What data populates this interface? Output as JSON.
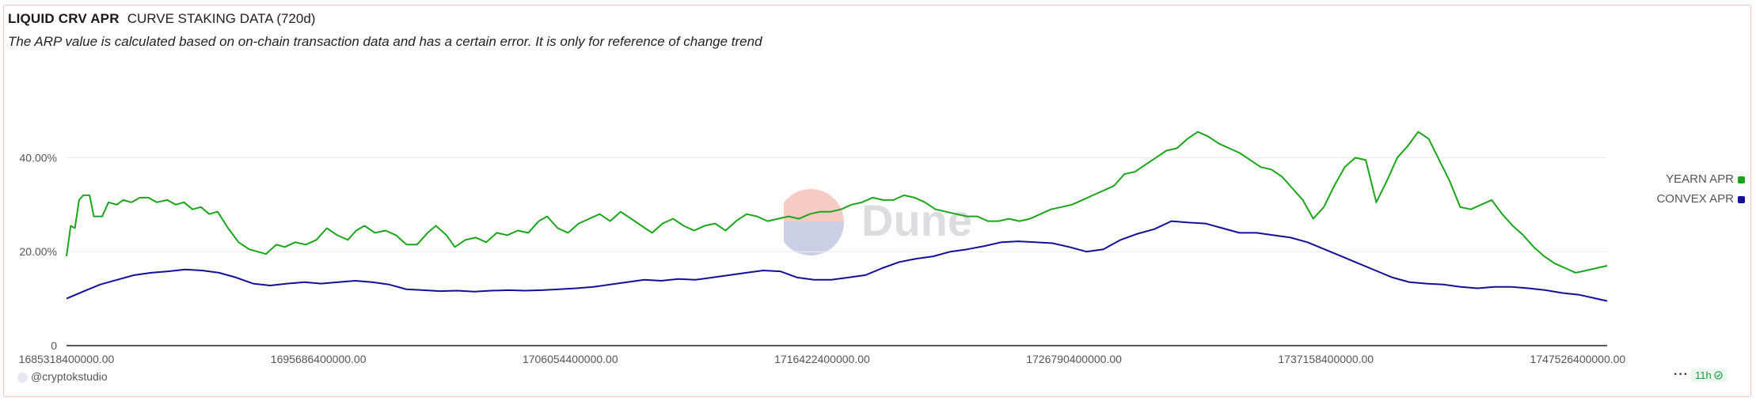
{
  "header": {
    "title": "LIQUID CRV APR",
    "subtitle_tag": "CURVE STAKING DATA (720d)",
    "note": "The ARP value is calculated based on on-chain transaction data and has a certain error. It is only for reference of change trend"
  },
  "watermark": {
    "text": "Dune"
  },
  "footer": {
    "author": "@cryptokstudio",
    "menu": "···",
    "age": "11h",
    "check_icon": "check-circle-icon"
  },
  "colors": {
    "yearn": "#1aa51a",
    "convex": "#10109a",
    "grid": "#ececec",
    "axis": "#222222"
  },
  "chart_data": {
    "type": "line",
    "title": "LIQUID CRV APR",
    "xlabel": "",
    "ylabel": "",
    "xlim": [
      1685318400000,
      1748736000000
    ],
    "ylim": [
      0,
      0.5
    ],
    "x_ticks": [
      1685318400000,
      1695686400000,
      1706054400000,
      1716422400000,
      1726790400000,
      1737158400000,
      1747526400000
    ],
    "x_tick_labels": [
      "1685318400000.00",
      "1695686400000.00",
      "1706054400000.00",
      "1716422400000.00",
      "1726790400000.00",
      "1737158400000.00",
      "1747526400000.00"
    ],
    "y_ticks": [
      0,
      0.2,
      0.4
    ],
    "y_tick_labels": [
      "0",
      "20.00%",
      "40.00%"
    ],
    "grid": true,
    "legend_position": "right",
    "series": [
      {
        "name": "YEARN APR",
        "color": "#1aa51a",
        "points": [
          [
            1685318400000,
            0.19
          ],
          [
            1685491200000,
            0.255
          ],
          [
            1685664000000,
            0.25
          ],
          [
            1685836800000,
            0.31
          ],
          [
            1686009600000,
            0.32
          ],
          [
            1686268800000,
            0.32
          ],
          [
            1686441600000,
            0.275
          ],
          [
            1686787200000,
            0.275
          ],
          [
            1687046400000,
            0.305
          ],
          [
            1687392000000,
            0.3
          ],
          [
            1687651200000,
            0.31
          ],
          [
            1687996800000,
            0.305
          ],
          [
            1688342400000,
            0.315
          ],
          [
            1688688000000,
            0.315
          ],
          [
            1689033600000,
            0.305
          ],
          [
            1689465600000,
            0.31
          ],
          [
            1689811200000,
            0.3
          ],
          [
            1690156800000,
            0.305
          ],
          [
            1690502400000,
            0.29
          ],
          [
            1690848000000,
            0.295
          ],
          [
            1691193600000,
            0.28
          ],
          [
            1691539200000,
            0.285
          ],
          [
            1691971200000,
            0.25
          ],
          [
            1692403200000,
            0.22
          ],
          [
            1692835200000,
            0.205
          ],
          [
            1693180800000,
            0.2
          ],
          [
            1693526400000,
            0.195
          ],
          [
            1693958400000,
            0.215
          ],
          [
            1694304000000,
            0.21
          ],
          [
            1694736000000,
            0.22
          ],
          [
            1695168000000,
            0.215
          ],
          [
            1695600000000,
            0.225
          ],
          [
            1696032000000,
            0.25
          ],
          [
            1696464000000,
            0.235
          ],
          [
            1696896000000,
            0.225
          ],
          [
            1697241600000,
            0.245
          ],
          [
            1697587200000,
            0.255
          ],
          [
            1698019200000,
            0.24
          ],
          [
            1698451200000,
            0.245
          ],
          [
            1698883200000,
            0.235
          ],
          [
            1699315200000,
            0.215
          ],
          [
            1699747200000,
            0.215
          ],
          [
            1700179200000,
            0.24
          ],
          [
            1700524800000,
            0.255
          ],
          [
            1700956800000,
            0.235
          ],
          [
            1701302400000,
            0.21
          ],
          [
            1701734400000,
            0.225
          ],
          [
            1702166400000,
            0.23
          ],
          [
            1702598400000,
            0.22
          ],
          [
            1703030400000,
            0.24
          ],
          [
            1703462400000,
            0.235
          ],
          [
            1703894400000,
            0.245
          ],
          [
            1704326400000,
            0.24
          ],
          [
            1704758400000,
            0.265
          ],
          [
            1705104000000,
            0.275
          ],
          [
            1705536000000,
            0.25
          ],
          [
            1705968000000,
            0.24
          ],
          [
            1706400000000,
            0.26
          ],
          [
            1706832000000,
            0.27
          ],
          [
            1707264000000,
            0.28
          ],
          [
            1707696000000,
            0.265
          ],
          [
            1708128000000,
            0.285
          ],
          [
            1708560000000,
            0.27
          ],
          [
            1708992000000,
            0.255
          ],
          [
            1709424000000,
            0.24
          ],
          [
            1709856000000,
            0.26
          ],
          [
            1710288000000,
            0.27
          ],
          [
            1710720000000,
            0.255
          ],
          [
            1711152000000,
            0.245
          ],
          [
            1711584000000,
            0.255
          ],
          [
            1712016000000,
            0.26
          ],
          [
            1712448000000,
            0.245
          ],
          [
            1712880000000,
            0.265
          ],
          [
            1713312000000,
            0.28
          ],
          [
            1713744000000,
            0.275
          ],
          [
            1714176000000,
            0.265
          ],
          [
            1714608000000,
            0.27
          ],
          [
            1715040000000,
            0.275
          ],
          [
            1715472000000,
            0.27
          ],
          [
            1715904000000,
            0.28
          ],
          [
            1716336000000,
            0.285
          ],
          [
            1716768000000,
            0.285
          ],
          [
            1717200000000,
            0.29
          ],
          [
            1717632000000,
            0.3
          ],
          [
            1718064000000,
            0.305
          ],
          [
            1718496000000,
            0.315
          ],
          [
            1718928000000,
            0.31
          ],
          [
            1719360000000,
            0.31
          ],
          [
            1719792000000,
            0.32
          ],
          [
            1720224000000,
            0.315
          ],
          [
            1720656000000,
            0.305
          ],
          [
            1721088000000,
            0.29
          ],
          [
            1721520000000,
            0.285
          ],
          [
            1721952000000,
            0.28
          ],
          [
            1722384000000,
            0.275
          ],
          [
            1722816000000,
            0.275
          ],
          [
            1723248000000,
            0.265
          ],
          [
            1723680000000,
            0.265
          ],
          [
            1724112000000,
            0.27
          ],
          [
            1724544000000,
            0.265
          ],
          [
            1724976000000,
            0.27
          ],
          [
            1725408000000,
            0.28
          ],
          [
            1725840000000,
            0.29
          ],
          [
            1726272000000,
            0.295
          ],
          [
            1726704000000,
            0.3
          ],
          [
            1727136000000,
            0.31
          ],
          [
            1727568000000,
            0.32
          ],
          [
            1728000000000,
            0.33
          ],
          [
            1728432000000,
            0.34
          ],
          [
            1728864000000,
            0.365
          ],
          [
            1729296000000,
            0.37
          ],
          [
            1729728000000,
            0.385
          ],
          [
            1730160000000,
            0.4
          ],
          [
            1730592000000,
            0.415
          ],
          [
            1731024000000,
            0.42
          ],
          [
            1731456000000,
            0.44
          ],
          [
            1731888000000,
            0.455
          ],
          [
            1732320000000,
            0.445
          ],
          [
            1732752000000,
            0.43
          ],
          [
            1733184000000,
            0.42
          ],
          [
            1733616000000,
            0.41
          ],
          [
            1734048000000,
            0.395
          ],
          [
            1734480000000,
            0.38
          ],
          [
            1734912000000,
            0.375
          ],
          [
            1735344000000,
            0.36
          ],
          [
            1735776000000,
            0.335
          ],
          [
            1736208000000,
            0.31
          ],
          [
            1736640000000,
            0.27
          ],
          [
            1737072000000,
            0.295
          ],
          [
            1737504000000,
            0.34
          ],
          [
            1737936000000,
            0.38
          ],
          [
            1738368000000,
            0.4
          ],
          [
            1738800000000,
            0.395
          ],
          [
            1739232000000,
            0.305
          ],
          [
            1739664000000,
            0.35
          ],
          [
            1740096000000,
            0.4
          ],
          [
            1740528000000,
            0.425
          ],
          [
            1740960000000,
            0.455
          ],
          [
            1741392000000,
            0.44
          ],
          [
            1741824000000,
            0.395
          ],
          [
            1742256000000,
            0.35
          ],
          [
            1742688000000,
            0.295
          ],
          [
            1743120000000,
            0.29
          ],
          [
            1743552000000,
            0.3
          ],
          [
            1743984000000,
            0.31
          ],
          [
            1744416000000,
            0.28
          ],
          [
            1744848000000,
            0.255
          ],
          [
            1745280000000,
            0.235
          ],
          [
            1745712000000,
            0.21
          ],
          [
            1746144000000,
            0.19
          ],
          [
            1746576000000,
            0.175
          ],
          [
            1747008000000,
            0.165
          ],
          [
            1747440000000,
            0.155
          ],
          [
            1747872000000,
            0.16
          ],
          [
            1748304000000,
            0.165
          ],
          [
            1748736000000,
            0.17
          ]
        ]
      },
      {
        "name": "CONVEX APR",
        "color": "#10109a",
        "points": [
          [
            1685318400000,
            0.1
          ],
          [
            1686000000000,
            0.115
          ],
          [
            1686700000000,
            0.13
          ],
          [
            1687400000000,
            0.14
          ],
          [
            1688100000000,
            0.15
          ],
          [
            1688800000000,
            0.155
          ],
          [
            1689500000000,
            0.158
          ],
          [
            1690200000000,
            0.162
          ],
          [
            1690900000000,
            0.16
          ],
          [
            1691600000000,
            0.155
          ],
          [
            1692300000000,
            0.145
          ],
          [
            1693000000000,
            0.132
          ],
          [
            1693700000000,
            0.128
          ],
          [
            1694400000000,
            0.132
          ],
          [
            1695100000000,
            0.135
          ],
          [
            1695800000000,
            0.132
          ],
          [
            1696500000000,
            0.135
          ],
          [
            1697200000000,
            0.138
          ],
          [
            1697900000000,
            0.135
          ],
          [
            1698600000000,
            0.13
          ],
          [
            1699300000000,
            0.12
          ],
          [
            1700000000000,
            0.118
          ],
          [
            1700700000000,
            0.116
          ],
          [
            1701400000000,
            0.117
          ],
          [
            1702100000000,
            0.115
          ],
          [
            1702800000000,
            0.117
          ],
          [
            1703500000000,
            0.118
          ],
          [
            1704200000000,
            0.117
          ],
          [
            1704900000000,
            0.118
          ],
          [
            1705600000000,
            0.12
          ],
          [
            1706300000000,
            0.122
          ],
          [
            1707000000000,
            0.125
          ],
          [
            1707700000000,
            0.13
          ],
          [
            1708400000000,
            0.135
          ],
          [
            1709100000000,
            0.14
          ],
          [
            1709800000000,
            0.138
          ],
          [
            1710500000000,
            0.142
          ],
          [
            1711200000000,
            0.14
          ],
          [
            1711900000000,
            0.145
          ],
          [
            1712600000000,
            0.15
          ],
          [
            1713300000000,
            0.155
          ],
          [
            1714000000000,
            0.16
          ],
          [
            1714700000000,
            0.158
          ],
          [
            1715400000000,
            0.145
          ],
          [
            1716100000000,
            0.14
          ],
          [
            1716800000000,
            0.14
          ],
          [
            1717500000000,
            0.145
          ],
          [
            1718200000000,
            0.15
          ],
          [
            1718900000000,
            0.165
          ],
          [
            1719600000000,
            0.178
          ],
          [
            1720300000000,
            0.185
          ],
          [
            1721000000000,
            0.19
          ],
          [
            1721700000000,
            0.2
          ],
          [
            1722400000000,
            0.205
          ],
          [
            1723100000000,
            0.212
          ],
          [
            1723800000000,
            0.22
          ],
          [
            1724500000000,
            0.222
          ],
          [
            1725200000000,
            0.22
          ],
          [
            1725900000000,
            0.218
          ],
          [
            1726600000000,
            0.21
          ],
          [
            1727300000000,
            0.2
          ],
          [
            1728000000000,
            0.205
          ],
          [
            1728700000000,
            0.225
          ],
          [
            1729400000000,
            0.238
          ],
          [
            1730100000000,
            0.248
          ],
          [
            1730800000000,
            0.265
          ],
          [
            1731500000000,
            0.262
          ],
          [
            1732200000000,
            0.26
          ],
          [
            1732900000000,
            0.25
          ],
          [
            1733600000000,
            0.24
          ],
          [
            1734300000000,
            0.24
          ],
          [
            1735000000000,
            0.235
          ],
          [
            1735700000000,
            0.23
          ],
          [
            1736400000000,
            0.22
          ],
          [
            1737100000000,
            0.205
          ],
          [
            1737800000000,
            0.19
          ],
          [
            1738500000000,
            0.175
          ],
          [
            1739200000000,
            0.16
          ],
          [
            1739900000000,
            0.145
          ],
          [
            1740600000000,
            0.135
          ],
          [
            1741300000000,
            0.132
          ],
          [
            1742000000000,
            0.13
          ],
          [
            1742700000000,
            0.125
          ],
          [
            1743400000000,
            0.122
          ],
          [
            1744100000000,
            0.125
          ],
          [
            1744800000000,
            0.125
          ],
          [
            1745500000000,
            0.122
          ],
          [
            1746200000000,
            0.118
          ],
          [
            1746900000000,
            0.112
          ],
          [
            1747600000000,
            0.108
          ],
          [
            1748300000000,
            0.1
          ],
          [
            1748736000000,
            0.095
          ]
        ]
      }
    ]
  }
}
